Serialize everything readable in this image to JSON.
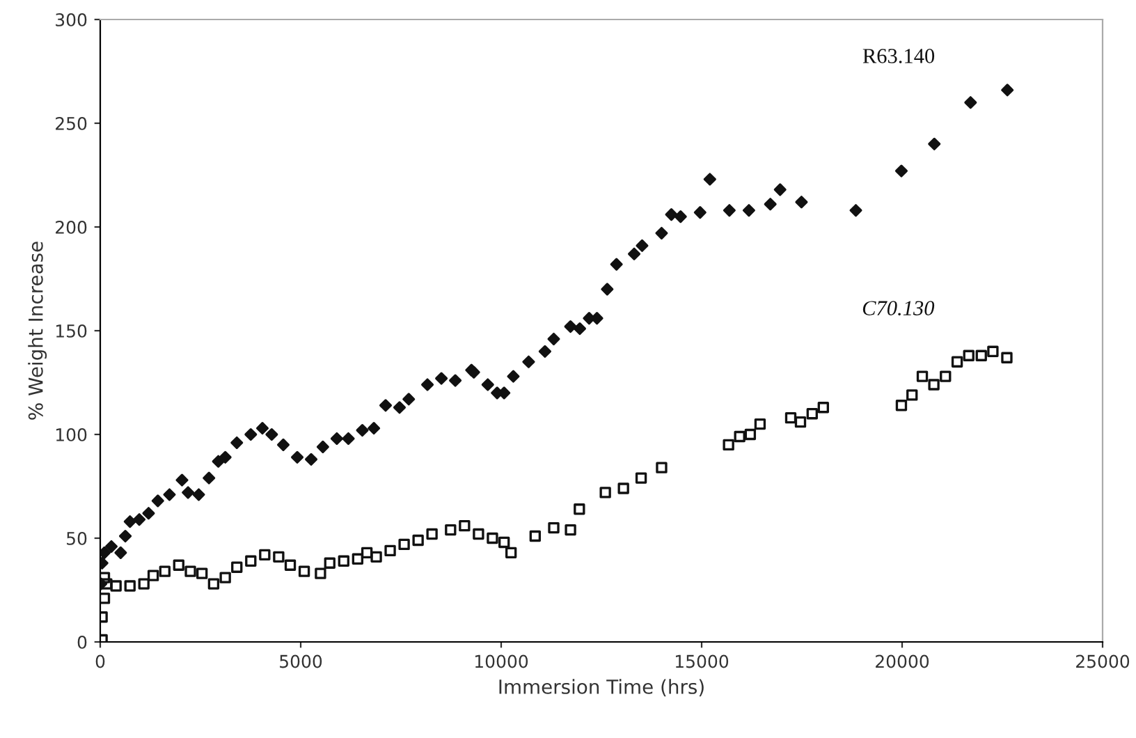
{
  "chart_data": {
    "type": "scatter",
    "xlabel": "Immersion Time (hrs)",
    "ylabel": "% Weight Increase",
    "xlim": [
      0,
      25000
    ],
    "ylim": [
      0,
      300
    ],
    "xticks": [
      0,
      5000,
      10000,
      15000,
      20000,
      25000
    ],
    "yticks": [
      0,
      50,
      100,
      150,
      200,
      250,
      300
    ],
    "grid": false,
    "legend": false,
    "series": [
      {
        "name": "R63.140",
        "color": "#111111",
        "marker": "diamond",
        "x": [
          20,
          46,
          104,
          278,
          510,
          626,
          742,
          974,
          1206,
          1437,
          1727,
          2040,
          2190,
          2457,
          2712,
          2945,
          3119,
          3407,
          3755,
          4045,
          4277,
          4566,
          4914,
          5261,
          5553,
          5901,
          6189,
          6537,
          6825,
          7118,
          7465,
          7695,
          8161,
          8509,
          8856,
          9259,
          9318,
          9666,
          9899,
          10073,
          10303,
          10685,
          11092,
          11311,
          11729,
          11961,
          12194,
          12389,
          12645,
          12876,
          13317,
          13515,
          14001,
          14245,
          14475,
          14962,
          15205,
          15692,
          16179,
          16713,
          16957,
          17490,
          18846,
          19982,
          20803,
          21707,
          22625
        ],
        "values": [
          28,
          38,
          43,
          46,
          43,
          51,
          58,
          59,
          62,
          68,
          71,
          78,
          72,
          71,
          79,
          87,
          89,
          96,
          100,
          103,
          100,
          95,
          89,
          88,
          94,
          98,
          98,
          102,
          103,
          114,
          113,
          117,
          124,
          127,
          126,
          131,
          130,
          124,
          120,
          120,
          128,
          135,
          140,
          146,
          152,
          151,
          156,
          156,
          170,
          182,
          187,
          191,
          197,
          206,
          205,
          207,
          223,
          208,
          208,
          211,
          218,
          212,
          208,
          227,
          240,
          260,
          266
        ]
      },
      {
        "name": "C70.130",
        "color": "#111111",
        "marker": "square",
        "x": [
          46,
          46,
          104,
          162,
          104,
          394,
          742,
          1089,
          1321,
          1611,
          1958,
          2249,
          2538,
          2828,
          3119,
          3407,
          3755,
          4103,
          4451,
          4740,
          5088,
          5493,
          5725,
          6073,
          6421,
          6651,
          6885,
          7232,
          7580,
          7928,
          8275,
          8738,
          9086,
          9434,
          9782,
          10073,
          10246,
          10848,
          11311,
          11729,
          11950,
          12598,
          13050,
          13491,
          14001,
          15671,
          15949,
          16213,
          16457,
          17222,
          17465,
          17757,
          18035,
          19982,
          20247,
          20504,
          20792,
          21081,
          21373,
          21662,
          21975,
          22264,
          22612
        ],
        "values": [
          1,
          12,
          21,
          28,
          31,
          27,
          27,
          28,
          32,
          34,
          37,
          34,
          33,
          28,
          31,
          36,
          39,
          42,
          41,
          37,
          34,
          33,
          38,
          39,
          40,
          43,
          41,
          44,
          47,
          49,
          52,
          54,
          56,
          52,
          50,
          48,
          43,
          51,
          55,
          54,
          64,
          72,
          74,
          79,
          84,
          95,
          99,
          100,
          105,
          108,
          106,
          110,
          113,
          114,
          119,
          128,
          124,
          128,
          135,
          138,
          138,
          140,
          137
        ]
      }
    ]
  }
}
